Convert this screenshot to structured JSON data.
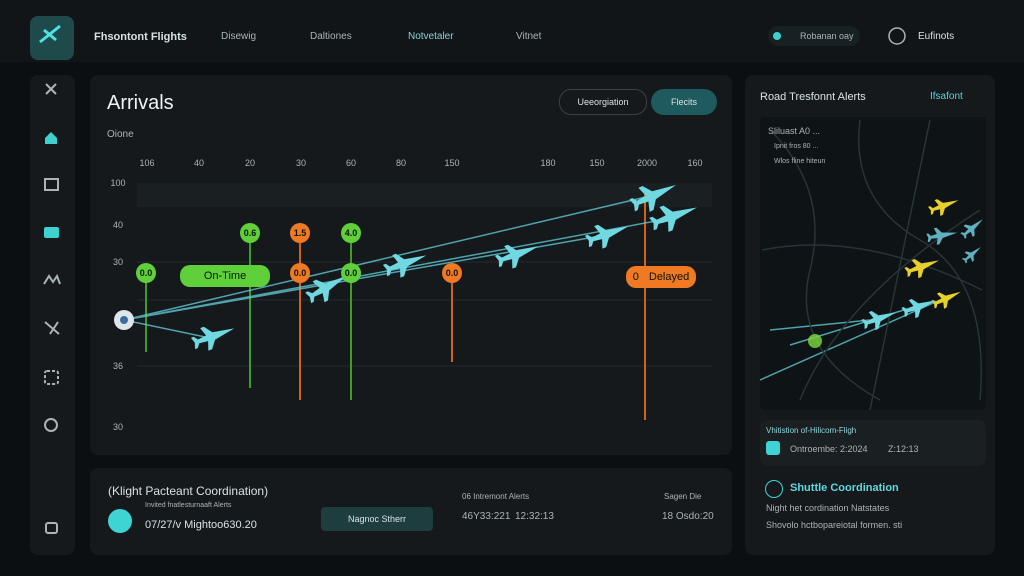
{
  "header": {
    "brand": "Fhsontont Flights",
    "nav": [
      "Disewig",
      "Daltiones",
      "Notvetaler",
      "Vitnet"
    ],
    "status": "Robanan oay",
    "user": "Eufinots"
  },
  "arrivals": {
    "title": "Arrivals",
    "subtitle": "Oione",
    "buttons": [
      "Ueeorgiation",
      "Flecits"
    ],
    "top_labels": [
      "106",
      "40",
      "20",
      "30",
      "60",
      "80",
      "150",
      "180",
      "150",
      "2000",
      "160"
    ],
    "side_labels": [
      "100",
      "40",
      "30",
      "36",
      "30"
    ],
    "markers": [
      "0.6",
      "1.5",
      "4.0",
      "0.0",
      "0.0",
      "0.0",
      "0.0"
    ],
    "on_time": "On-Time",
    "delayed_count": "0",
    "delayed": "Delayed"
  },
  "coordination": {
    "title": "(Klight Pacteant Coordination)",
    "caption": "Invited fnatlesturnaaft Alerts",
    "flight": "07/27/v Mightoo630.20",
    "button": "Nagnoc Stherr",
    "alerts_label": "06 Intremont Alerts",
    "alerts_time1": "46Y33:221",
    "alerts_time2": "12:32:13",
    "stage_label": "Sagen Die",
    "stage_time": "18 Osdo:20"
  },
  "alerts": {
    "title": "Road Tresfonnt Alerts",
    "link": "Ifsafont",
    "map_lines": [
      "Sliluast A0 ... ",
      "Ipnit fros 80 ...",
      "Wlos fline hiteun"
    ],
    "notice_title": "Vhitistion of-Hilicom-Fligh",
    "notice_time1": "Ontroembe: 2:2024",
    "notice_time2": "Z:12:13",
    "shuttle_title": "Shuttle Coordination",
    "shuttle_line1": "Night het cordination Natstates",
    "shuttle_line2": "Shovolo hctbopareiotal formen. sti"
  }
}
